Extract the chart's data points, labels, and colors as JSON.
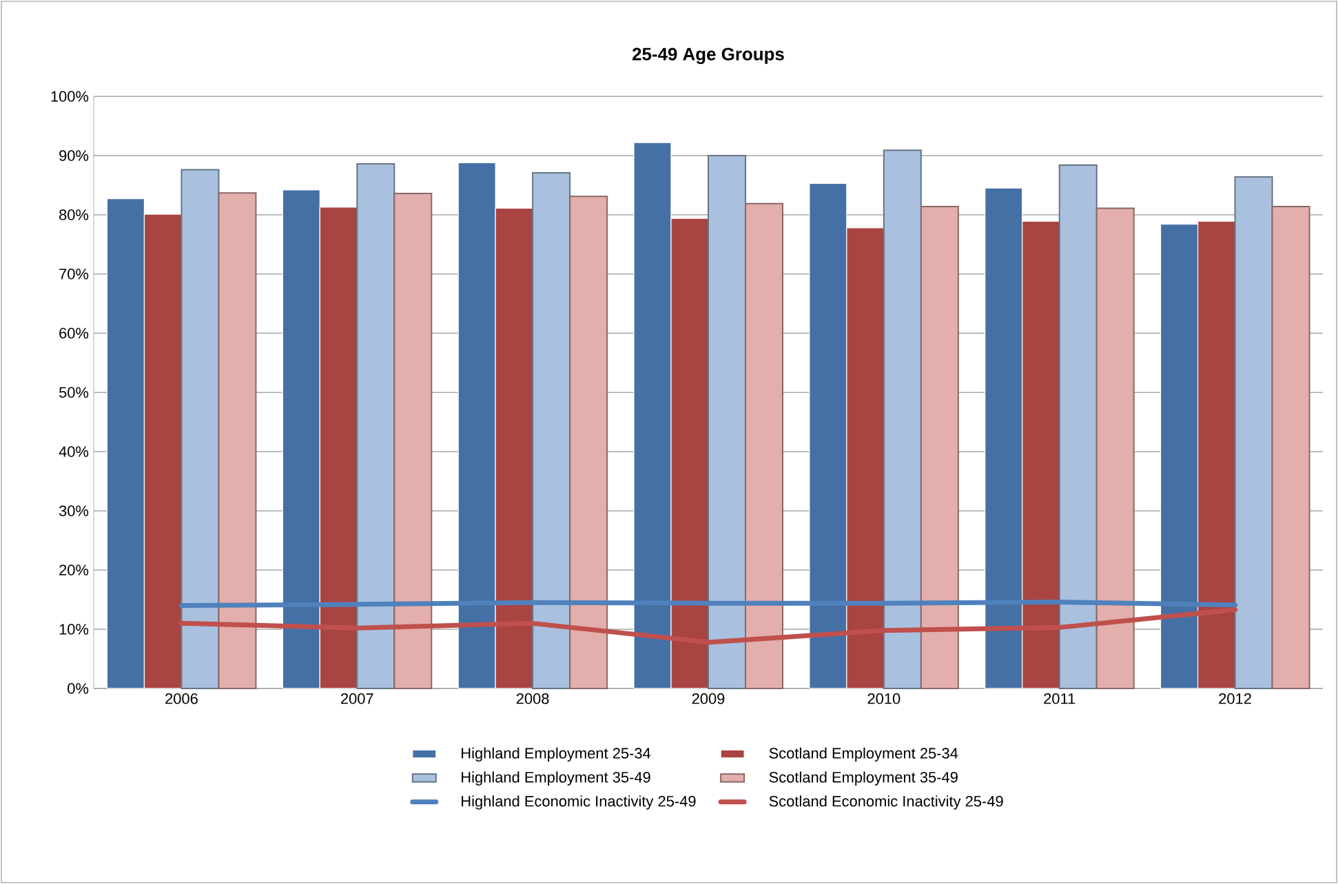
{
  "chart_data": {
    "type": "bar",
    "title": "**25-49 Age Groups**",
    "categories": [
      "2006",
      "2007",
      "2008",
      "2009",
      "2010",
      "2011",
      "2012"
    ],
    "series": [
      {
        "name": "Highland Employment 25-34",
        "color": "#4470a5",
        "values": [
          82.7,
          84.2,
          88.8,
          92.2,
          85.3,
          84.5,
          78.4
        ]
      },
      {
        "name": "Scotland Employment 25-34",
        "color": "#a84442",
        "values": [
          80.1,
          81.3,
          81.1,
          79.4,
          77.8,
          78.9,
          78.9
        ]
      },
      {
        "name": "Highland Employment 35-49",
        "color": "#a9c1de",
        "values": [
          87.6,
          88.6,
          87.1,
          90.0,
          90.9,
          88.4,
          86.4
        ]
      },
      {
        "name": "Scotland Employment 35-49",
        "color": "#e3aeac",
        "values": [
          83.7,
          83.6,
          83.1,
          81.9,
          81.4,
          81.1,
          81.4
        ]
      },
      {
        "name": "Highland Economic Inactivity 25-49",
        "type": "line",
        "color": "#4f81bd",
        "values": [
          14.0,
          14.2,
          14.5,
          14.4,
          14.4,
          14.6,
          14.1
        ]
      },
      {
        "name": "Scotland Economic Inactivity 25-49",
        "type": "line",
        "color": "#c0504d",
        "values": [
          11.0,
          10.2,
          11.0,
          7.8,
          9.8,
          10.3,
          13.3
        ]
      }
    ],
    "ylim": [
      0,
      100
    ],
    "yticks": [
      {
        "value": 0,
        "label": "0%"
      },
      {
        "value": 10,
        "label": "10%"
      },
      {
        "value": 20,
        "label": "20%"
      },
      {
        "value": 30,
        "label": "30%"
      },
      {
        "value": 40,
        "label": "40%"
      },
      {
        "value": 50,
        "label": "50%"
      },
      {
        "value": 60,
        "label": "60%"
      },
      {
        "value": 70,
        "label": "70%"
      },
      {
        "value": 80,
        "label": "80%"
      },
      {
        "value": 90,
        "label": "90%"
      },
      {
        "value": 100,
        "label": "100%"
      }
    ],
    "grid": "y",
    "legend": "bottom"
  }
}
